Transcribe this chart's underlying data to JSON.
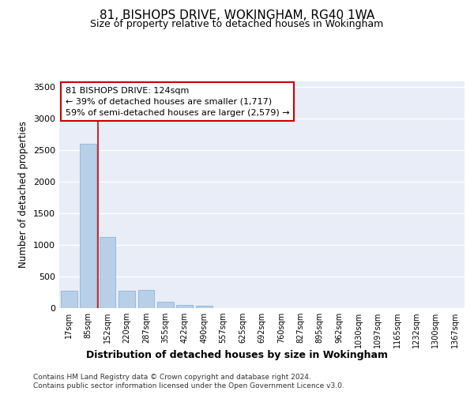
{
  "title": "81, BISHOPS DRIVE, WOKINGHAM, RG40 1WA",
  "subtitle": "Size of property relative to detached houses in Wokingham",
  "xlabel": "Distribution of detached houses by size in Wokingham",
  "ylabel": "Number of detached properties",
  "bar_labels": [
    "17sqm",
    "85sqm",
    "152sqm",
    "220sqm",
    "287sqm",
    "355sqm",
    "422sqm",
    "490sqm",
    "557sqm",
    "625sqm",
    "692sqm",
    "760sqm",
    "827sqm",
    "895sqm",
    "962sqm",
    "1030sqm",
    "1097sqm",
    "1165sqm",
    "1232sqm",
    "1300sqm",
    "1367sqm"
  ],
  "bar_values": [
    275,
    2600,
    1130,
    280,
    285,
    95,
    55,
    35,
    0,
    0,
    0,
    0,
    0,
    0,
    0,
    0,
    0,
    0,
    0,
    0,
    0
  ],
  "bar_color": "#b8cfe8",
  "bar_edge_color": "#7aafd4",
  "background_color": "#e8edf8",
  "grid_color": "#ffffff",
  "red_line_x": 1.52,
  "annotation_line1": "81 BISHOPS DRIVE: 124sqm",
  "annotation_line2": "← 39% of detached houses are smaller (1,717)",
  "annotation_line3": "59% of semi-detached houses are larger (2,579) →",
  "annotation_box_color": "#ffffff",
  "annotation_border_color": "#cc0000",
  "ylim": [
    0,
    3600
  ],
  "yticks": [
    0,
    500,
    1000,
    1500,
    2000,
    2500,
    3000,
    3500
  ],
  "footer_line1": "Contains HM Land Registry data © Crown copyright and database right 2024.",
  "footer_line2": "Contains public sector information licensed under the Open Government Licence v3.0."
}
